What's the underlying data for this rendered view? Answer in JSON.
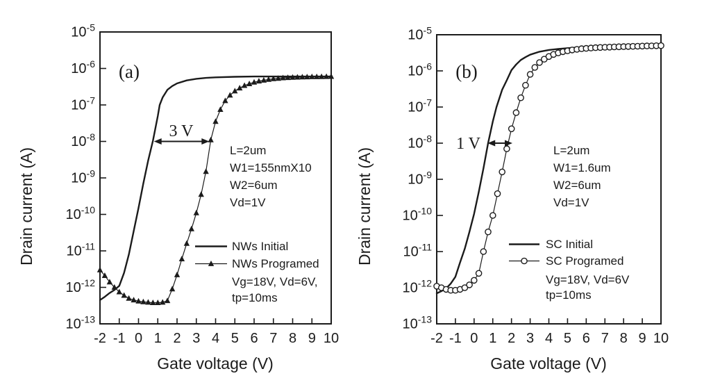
{
  "figure": {
    "background": "#ffffff",
    "ink_color": "#1b1b1b"
  },
  "chart_data": [
    {
      "type": "line",
      "panel_label": "(a)",
      "xlabel": "Gate voltage (V)",
      "ylabel": "Drain current (A)",
      "xlim": [
        -2,
        10
      ],
      "ylim": [
        1e-13,
        1e-05
      ],
      "yscale": "log",
      "grid": false,
      "x_ticks": [
        -2,
        -1,
        0,
        1,
        2,
        3,
        4,
        5,
        6,
        7,
        8,
        9,
        10
      ],
      "y_tick_base": "10",
      "y_tick_exponents": [
        "-5",
        "-6",
        "-7",
        "-8",
        "-9",
        "-10",
        "-11",
        "-12",
        "-13"
      ],
      "legend": {
        "position": "lower-right-inside",
        "entries": [
          {
            "label": "NWs Initial",
            "marker": "none"
          },
          {
            "label": "NWs Programed",
            "marker": "triangle"
          }
        ],
        "extra_lines": [
          "Vg=18V, Vd=6V,",
          "tp=10ms"
        ]
      },
      "annotations": {
        "device_lines": [
          "L=2um",
          "W1=155nmX10",
          "W2=6um",
          "Vd=1V"
        ],
        "shift": {
          "label": "3 V",
          "x1": 0.8,
          "x2": 3.67,
          "y": 1e-08
        }
      },
      "series": [
        {
          "name": "NWs Initial",
          "marker": "none",
          "points": [
            [
              -2,
              4.5e-13
            ],
            [
              -1.75,
              5.5e-13
            ],
            [
              -1.5,
              7e-13
            ],
            [
              -1.25,
              8.5e-13
            ],
            [
              -1,
              1.1e-12
            ],
            [
              -0.75,
              2.5e-12
            ],
            [
              -0.5,
              8e-12
            ],
            [
              -0.25,
              3.5e-11
            ],
            [
              0,
              1.5e-10
            ],
            [
              0.25,
              7e-10
            ],
            [
              0.5,
              3e-09
            ],
            [
              0.75,
              1.05e-08
            ],
            [
              1,
              5e-08
            ],
            [
              1.1,
              1e-07
            ],
            [
              1.25,
              1.6e-07
            ],
            [
              1.5,
              2.6e-07
            ],
            [
              1.75,
              3.3e-07
            ],
            [
              2,
              3.9e-07
            ],
            [
              2.5,
              4.7e-07
            ],
            [
              3,
              5.2e-07
            ],
            [
              3.5,
              5.5e-07
            ],
            [
              4,
              5.7e-07
            ],
            [
              5,
              5.9e-07
            ],
            [
              6,
              6e-07
            ],
            [
              7,
              6e-07
            ],
            [
              8,
              6e-07
            ],
            [
              9,
              6e-07
            ],
            [
              10,
              6e-07
            ]
          ]
        },
        {
          "name": "NWs Programed",
          "marker": "triangle",
          "points": [
            [
              -2,
              3e-12
            ],
            [
              -1.75,
              2.1e-12
            ],
            [
              -1.5,
              1.4e-12
            ],
            [
              -1.25,
              1e-12
            ],
            [
              -1,
              7.5e-13
            ],
            [
              -0.75,
              6e-13
            ],
            [
              -0.5,
              5e-13
            ],
            [
              -0.25,
              4.5e-13
            ],
            [
              0,
              4.2e-13
            ],
            [
              0.25,
              4e-13
            ],
            [
              0.5,
              3.9e-13
            ],
            [
              0.75,
              3.8e-13
            ],
            [
              1,
              3.8e-13
            ],
            [
              1.25,
              3.9e-13
            ],
            [
              1.5,
              4.3e-13
            ],
            [
              1.75,
              9e-13
            ],
            [
              2,
              2.2e-12
            ],
            [
              2.25,
              6e-12
            ],
            [
              2.5,
              1.6e-11
            ],
            [
              2.75,
              4e-11
            ],
            [
              3,
              1.1e-10
            ],
            [
              3.25,
              3.5e-10
            ],
            [
              3.5,
              1.5e-09
            ],
            [
              3.75,
              1.1e-08
            ],
            [
              4,
              3.5e-08
            ],
            [
              4.25,
              7.5e-08
            ],
            [
              4.5,
              1.3e-07
            ],
            [
              4.75,
              1.85e-07
            ],
            [
              5,
              2.4e-07
            ],
            [
              5.25,
              2.9e-07
            ],
            [
              5.5,
              3.4e-07
            ],
            [
              5.75,
              3.8e-07
            ],
            [
              6,
              4.2e-07
            ],
            [
              6.25,
              4.5e-07
            ],
            [
              6.5,
              4.75e-07
            ],
            [
              6.75,
              5e-07
            ],
            [
              7,
              5.2e-07
            ],
            [
              7.25,
              5.35e-07
            ],
            [
              7.5,
              5.5e-07
            ],
            [
              7.75,
              5.6e-07
            ],
            [
              8,
              5.7e-07
            ],
            [
              8.25,
              5.75e-07
            ],
            [
              8.5,
              5.8e-07
            ],
            [
              8.75,
              5.85e-07
            ],
            [
              9,
              5.9e-07
            ],
            [
              9.25,
              5.92e-07
            ],
            [
              9.5,
              5.95e-07
            ],
            [
              9.75,
              5.98e-07
            ],
            [
              10,
              6e-07
            ]
          ]
        }
      ]
    },
    {
      "type": "line",
      "panel_label": "(b)",
      "xlabel": "Gate voltage (V)",
      "ylabel": "Drain current (A)",
      "xlim": [
        -2,
        10
      ],
      "ylim": [
        1e-13,
        1e-05
      ],
      "yscale": "log",
      "grid": false,
      "x_ticks": [
        -2,
        -1,
        0,
        1,
        2,
        3,
        4,
        5,
        6,
        7,
        8,
        9,
        10
      ],
      "y_tick_base": "10",
      "y_tick_exponents": [
        "-5",
        "-6",
        "-7",
        "-8",
        "-9",
        "-10",
        "-11",
        "-12",
        "-13"
      ],
      "legend": {
        "position": "lower-right-inside",
        "entries": [
          {
            "label": "SC Initial",
            "marker": "none"
          },
          {
            "label": "SC Programed",
            "marker": "circle"
          }
        ],
        "extra_lines": [
          "Vg=18V, Vd=6V",
          "tp=10ms"
        ]
      },
      "annotations": {
        "device_lines": [
          "L=2um",
          "W1=1.6um",
          "W2=6um",
          "Vd=1V"
        ],
        "shift": {
          "label": "1 V",
          "x1": 0.72,
          "x2": 2.05,
          "y": 1e-08
        }
      },
      "series": [
        {
          "name": "SC Initial",
          "marker": "none",
          "points": [
            [
              -2,
              7e-13
            ],
            [
              -1.75,
              8e-13
            ],
            [
              -1.5,
              9.5e-13
            ],
            [
              -1.25,
              1.3e-12
            ],
            [
              -1,
              2e-12
            ],
            [
              -0.75,
              5e-12
            ],
            [
              -0.5,
              1.2e-11
            ],
            [
              -0.25,
              3.5e-11
            ],
            [
              0,
              1.1e-10
            ],
            [
              0.25,
              4.5e-10
            ],
            [
              0.5,
              2e-09
            ],
            [
              0.75,
              1e-08
            ],
            [
              1,
              4e-08
            ],
            [
              1.2,
              1e-07
            ],
            [
              1.5,
              3e-07
            ],
            [
              1.75,
              5.5e-07
            ],
            [
              2,
              1.05e-06
            ],
            [
              2.25,
              1.5e-06
            ],
            [
              2.5,
              2e-06
            ],
            [
              2.75,
              2.4e-06
            ],
            [
              3,
              2.8e-06
            ],
            [
              3.5,
              3.4e-06
            ],
            [
              4,
              3.8e-06
            ],
            [
              4.5,
              4.05e-06
            ],
            [
              5,
              4.25e-06
            ],
            [
              5.5,
              4.4e-06
            ],
            [
              6,
              4.5e-06
            ],
            [
              6.5,
              4.6e-06
            ],
            [
              7,
              4.65e-06
            ],
            [
              7.5,
              4.7e-06
            ],
            [
              8,
              4.78e-06
            ],
            [
              8.5,
              4.85e-06
            ],
            [
              9,
              4.9e-06
            ],
            [
              9.5,
              4.95e-06
            ],
            [
              10,
              5e-06
            ]
          ]
        },
        {
          "name": "SC Programed",
          "marker": "circle",
          "points": [
            [
              -2,
              1.1e-12
            ],
            [
              -1.75,
              1e-12
            ],
            [
              -1.5,
              9e-13
            ],
            [
              -1.25,
              8.5e-13
            ],
            [
              -1,
              8.5e-13
            ],
            [
              -0.75,
              9e-13
            ],
            [
              -0.5,
              1e-12
            ],
            [
              -0.25,
              1.2e-12
            ],
            [
              0,
              1.6e-12
            ],
            [
              0.25,
              2.5e-12
            ],
            [
              0.5,
              1e-11
            ],
            [
              0.75,
              3.5e-11
            ],
            [
              1,
              1e-10
            ],
            [
              1.25,
              4e-10
            ],
            [
              1.5,
              1.6e-09
            ],
            [
              1.75,
              7e-09
            ],
            [
              2,
              2.5e-08
            ],
            [
              2.25,
              7e-08
            ],
            [
              2.5,
              1.8e-07
            ],
            [
              2.75,
              4e-07
            ],
            [
              3,
              8e-07
            ],
            [
              3.25,
              1.25e-06
            ],
            [
              3.5,
              1.7e-06
            ],
            [
              3.75,
              2.1e-06
            ],
            [
              4,
              2.5e-06
            ],
            [
              4.25,
              2.85e-06
            ],
            [
              4.5,
              3.15e-06
            ],
            [
              4.75,
              3.4e-06
            ],
            [
              5,
              3.6e-06
            ],
            [
              5.25,
              3.8e-06
            ],
            [
              5.5,
              3.95e-06
            ],
            [
              5.75,
              4.1e-06
            ],
            [
              6,
              4.2e-06
            ],
            [
              6.25,
              4.3e-06
            ],
            [
              6.5,
              4.38e-06
            ],
            [
              6.75,
              4.45e-06
            ],
            [
              7,
              4.5e-06
            ],
            [
              7.25,
              4.55e-06
            ],
            [
              7.5,
              4.6e-06
            ],
            [
              7.75,
              4.65e-06
            ],
            [
              8,
              4.7e-06
            ],
            [
              8.25,
              4.74e-06
            ],
            [
              8.5,
              4.78e-06
            ],
            [
              8.75,
              4.82e-06
            ],
            [
              9,
              4.86e-06
            ],
            [
              9.25,
              4.9e-06
            ],
            [
              9.5,
              4.93e-06
            ],
            [
              9.75,
              4.96e-06
            ],
            [
              10,
              5e-06
            ]
          ]
        }
      ]
    }
  ]
}
